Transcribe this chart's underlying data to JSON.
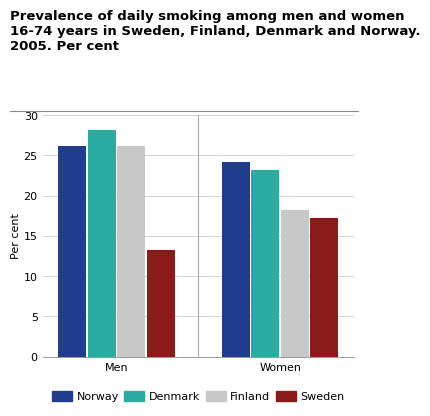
{
  "title_line1": "Prevalence of daily smoking among men and women",
  "title_line2": "16-74 years in Sweden, Finland, Denmark and Norway.",
  "title_line3": "2005. Per cent",
  "ylabel": "Per cent",
  "ylim": [
    0,
    30
  ],
  "yticks": [
    0,
    5,
    10,
    15,
    20,
    25,
    30
  ],
  "groups": [
    "Men",
    "Women"
  ],
  "countries": [
    "Norway",
    "Denmark",
    "Finland",
    "Sweden"
  ],
  "values": {
    "Men": [
      26.2,
      28.2,
      26.2,
      13.2
    ],
    "Women": [
      24.2,
      23.2,
      18.2,
      17.2
    ]
  },
  "colors": {
    "Norway": "#1f3d8c",
    "Denmark": "#2aada0",
    "Finland": "#c8c8c8",
    "Sweden": "#8b1a1a"
  },
  "background_color": "#ffffff",
  "grid_color": "#cccccc",
  "title_fontsize": 9.5,
  "tick_fontsize": 8,
  "legend_fontsize": 8,
  "ylabel_fontsize": 8
}
